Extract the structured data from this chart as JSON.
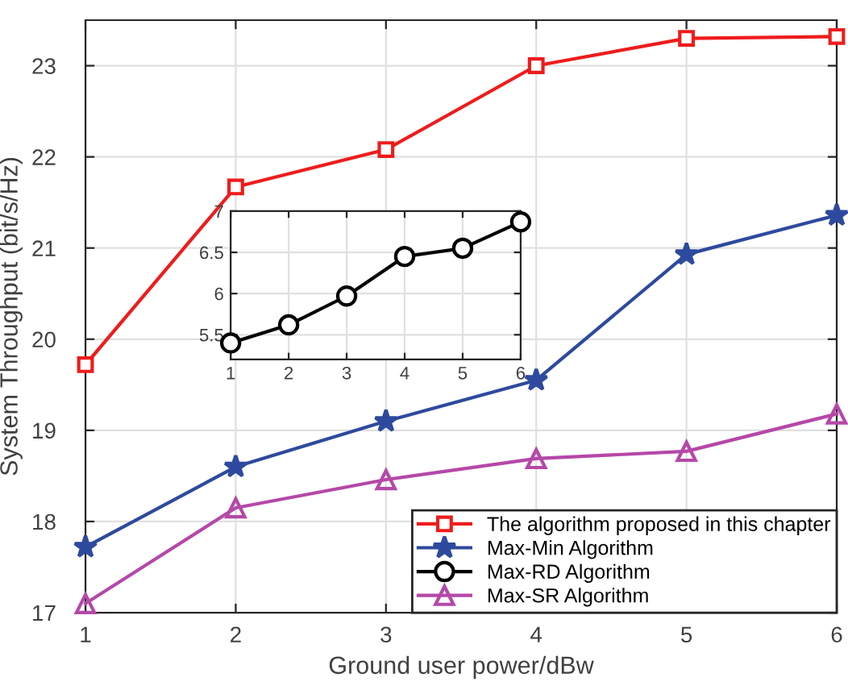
{
  "chart_data": [
    {
      "type": "line",
      "xlabel": "Ground user power/dBw",
      "ylabel": "System Throughput (bit/s/Hz)",
      "x": [
        1,
        2,
        3,
        4,
        5,
        6
      ],
      "xlim": [
        1,
        6
      ],
      "xticks": [
        1,
        2,
        3,
        4,
        5,
        6
      ],
      "ylim": [
        17,
        23.5
      ],
      "yticks": [
        17,
        18,
        19,
        20,
        21,
        22,
        23
      ],
      "grid": true,
      "legend": "bottom right",
      "line_style": "solid",
      "series": [
        {
          "name": "The algorithm proposed in this chapter",
          "color": "#ee1c1c",
          "marker": "square",
          "values": [
            19.72,
            21.67,
            22.08,
            23.0,
            23.3,
            23.32
          ]
        },
        {
          "name": "Max-Min Algorithm",
          "color": "#2e4a9e",
          "marker": "star",
          "values": [
            17.72,
            18.6,
            19.1,
            19.55,
            20.93,
            21.36
          ]
        },
        {
          "name": "Max-SR Algorithm",
          "color": "#b548a8",
          "marker": "triangle",
          "values": [
            17.1,
            18.15,
            18.46,
            18.69,
            18.77,
            19.18
          ]
        }
      ]
    },
    {
      "type": "line",
      "x": [
        1,
        2,
        3,
        4,
        5,
        6
      ],
      "xlim": [
        1,
        6
      ],
      "xticks": [
        1,
        2,
        3,
        4,
        5,
        6
      ],
      "ylim": [
        5.2,
        7
      ],
      "yticks": [
        5.5,
        6,
        6.5,
        7
      ],
      "grid": true,
      "line_style": "solid",
      "series": [
        {
          "name": "Max-RD Algorithm",
          "color": "#000000",
          "marker": "circle",
          "values": [
            5.4,
            5.62,
            5.97,
            6.45,
            6.55,
            6.87
          ]
        }
      ]
    }
  ]
}
